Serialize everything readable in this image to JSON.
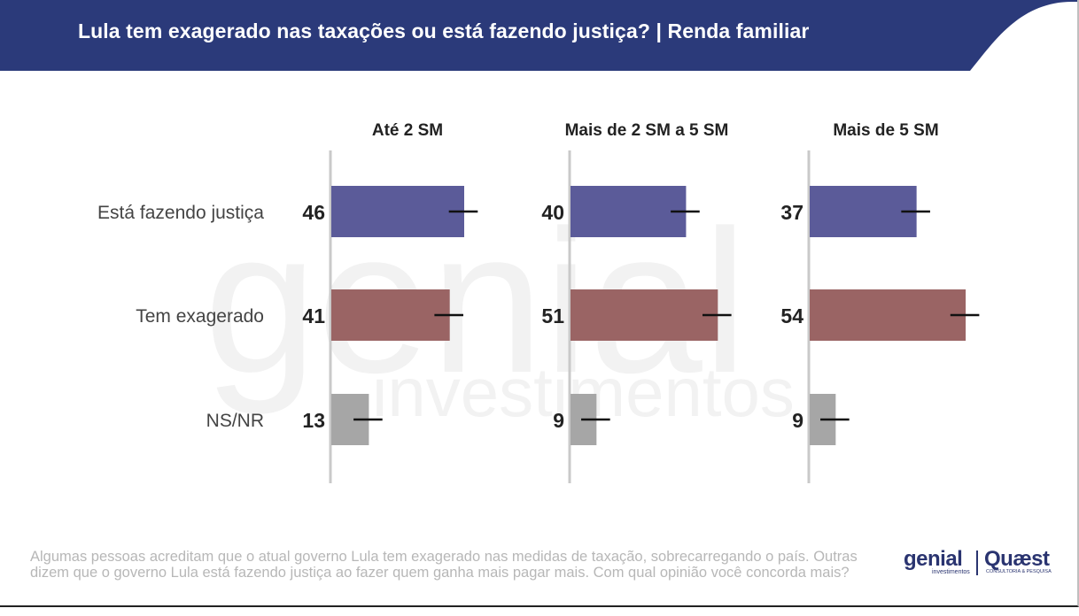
{
  "title": "Lula tem exagerado nas taxações ou está fazendo justiça? | Renda familiar",
  "colors": {
    "header": "#2b3a7a",
    "justica": "#5b5b99",
    "exagerado": "#9a6464",
    "nsnr": "#a6a6a6",
    "axis": "#c9c9c9",
    "error_bar": "#111111"
  },
  "watermark": {
    "word1": "genial",
    "word2": "investimentos"
  },
  "chart_data": {
    "type": "bar",
    "orientation": "horizontal",
    "categories": [
      "Está fazendo justiça",
      "Tem exagerado",
      "NS/NR"
    ],
    "panels": [
      {
        "title": "Até 2 SM",
        "values": [
          46,
          41,
          13
        ]
      },
      {
        "title": "Mais de 2 SM a 5 SM",
        "values": [
          40,
          51,
          9
        ]
      },
      {
        "title": "Mais de 5 SM",
        "values": [
          37,
          54,
          9
        ]
      }
    ],
    "error_margin": 5,
    "xlim": [
      0,
      60
    ]
  },
  "footnote": "Algumas pessoas acreditam que o atual governo Lula tem exagerado nas medidas de taxação, sobrecarregando o país. Outras dizem que o governo Lula está fazendo justiça ao fazer quem ganha mais pagar mais. Com qual opinião você concorda mais?",
  "logos": {
    "genial": "genial",
    "genial_sub": "investimentos",
    "quaest": "Quæst",
    "quaest_sub": "CONSULTORIA & PESQUISA"
  }
}
